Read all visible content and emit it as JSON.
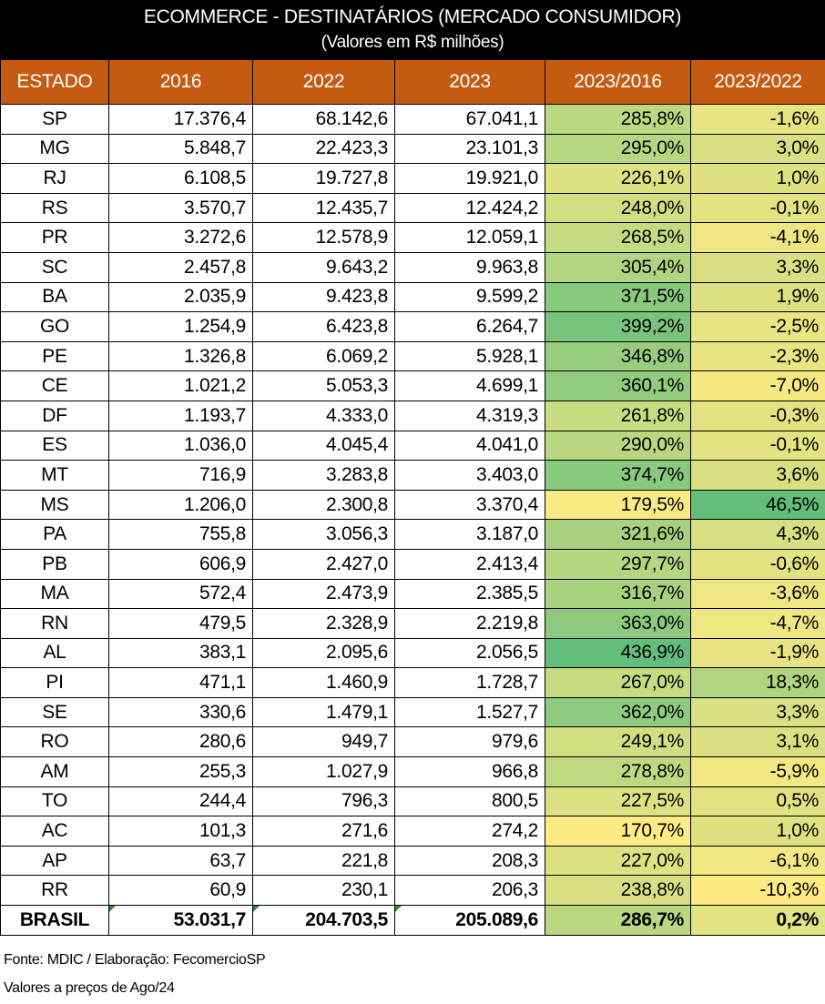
{
  "title": "ECOMMERCE - DESTINATÁRIOS (MERCADO CONSUMIDOR)",
  "subtitle": "(Valores em R$ milhões)",
  "footer": {
    "source": "Fonte: MDIC / Elaboração: FecomercioSP",
    "note": "Valores a preços de Ago/24"
  },
  "colors": {
    "title_bg": "#000000",
    "header_bg": "#c55a11",
    "scale_low": "#ffeb84",
    "scale_high": "#63be7b"
  },
  "chart_data": {
    "type": "table",
    "columns": [
      "ESTADO",
      "2016",
      "2022",
      "2023",
      "2023/2016",
      "2023/2022"
    ],
    "rows": [
      [
        "SP",
        "17.376,4",
        "68.142,6",
        "67.041,1",
        "285,8%",
        "-1,6%"
      ],
      [
        "MG",
        "5.848,7",
        "22.423,3",
        "23.101,3",
        "295,0%",
        "3,0%"
      ],
      [
        "RJ",
        "6.108,5",
        "19.727,8",
        "19.921,0",
        "226,1%",
        "1,0%"
      ],
      [
        "RS",
        "3.570,7",
        "12.435,7",
        "12.424,2",
        "248,0%",
        "-0,1%"
      ],
      [
        "PR",
        "3.272,6",
        "12.578,9",
        "12.059,1",
        "268,5%",
        "-4,1%"
      ],
      [
        "SC",
        "2.457,8",
        "9.643,2",
        "9.963,8",
        "305,4%",
        "3,3%"
      ],
      [
        "BA",
        "2.035,9",
        "9.423,8",
        "9.599,2",
        "371,5%",
        "1,9%"
      ],
      [
        "GO",
        "1.254,9",
        "6.423,8",
        "6.264,7",
        "399,2%",
        "-2,5%"
      ],
      [
        "PE",
        "1.326,8",
        "6.069,2",
        "5.928,1",
        "346,8%",
        "-2,3%"
      ],
      [
        "CE",
        "1.021,2",
        "5.053,3",
        "4.699,1",
        "360,1%",
        "-7,0%"
      ],
      [
        "DF",
        "1.193,7",
        "4.333,0",
        "4.319,3",
        "261,8%",
        "-0,3%"
      ],
      [
        "ES",
        "1.036,0",
        "4.045,4",
        "4.041,0",
        "290,0%",
        "-0,1%"
      ],
      [
        "MT",
        "716,9",
        "3.283,8",
        "3.403,0",
        "374,7%",
        "3,6%"
      ],
      [
        "MS",
        "1.206,0",
        "2.300,8",
        "3.370,4",
        "179,5%",
        "46,5%"
      ],
      [
        "PA",
        "755,8",
        "3.056,3",
        "3.187,0",
        "321,6%",
        "4,3%"
      ],
      [
        "PB",
        "606,9",
        "2.427,0",
        "2.413,4",
        "297,7%",
        "-0,6%"
      ],
      [
        "MA",
        "572,4",
        "2.473,9",
        "2.385,5",
        "316,7%",
        "-3,6%"
      ],
      [
        "RN",
        "479,5",
        "2.328,9",
        "2.219,8",
        "363,0%",
        "-4,7%"
      ],
      [
        "AL",
        "383,1",
        "2.095,6",
        "2.056,5",
        "436,9%",
        "-1,9%"
      ],
      [
        "PI",
        "471,1",
        "1.460,9",
        "1.728,7",
        "267,0%",
        "18,3%"
      ],
      [
        "SE",
        "330,6",
        "1.479,1",
        "1.527,7",
        "362,0%",
        "3,3%"
      ],
      [
        "RO",
        "280,6",
        "949,7",
        "979,6",
        "249,1%",
        "3,1%"
      ],
      [
        "AM",
        "255,3",
        "1.027,9",
        "966,8",
        "278,8%",
        "-5,9%"
      ],
      [
        "TO",
        "244,4",
        "796,3",
        "800,5",
        "227,5%",
        "0,5%"
      ],
      [
        "AC",
        "101,3",
        "271,6",
        "274,2",
        "170,7%",
        "1,0%"
      ],
      [
        "AP",
        "63,7",
        "221,8",
        "208,3",
        "227,0%",
        "-6,1%"
      ],
      [
        "RR",
        "60,9",
        "230,1",
        "206,3",
        "238,8%",
        "-10,3%"
      ]
    ],
    "total": [
      "BRASIL",
      "53.031,7",
      "204.703,5",
      "205.089,6",
      "286,7%",
      "0,2%"
    ]
  }
}
